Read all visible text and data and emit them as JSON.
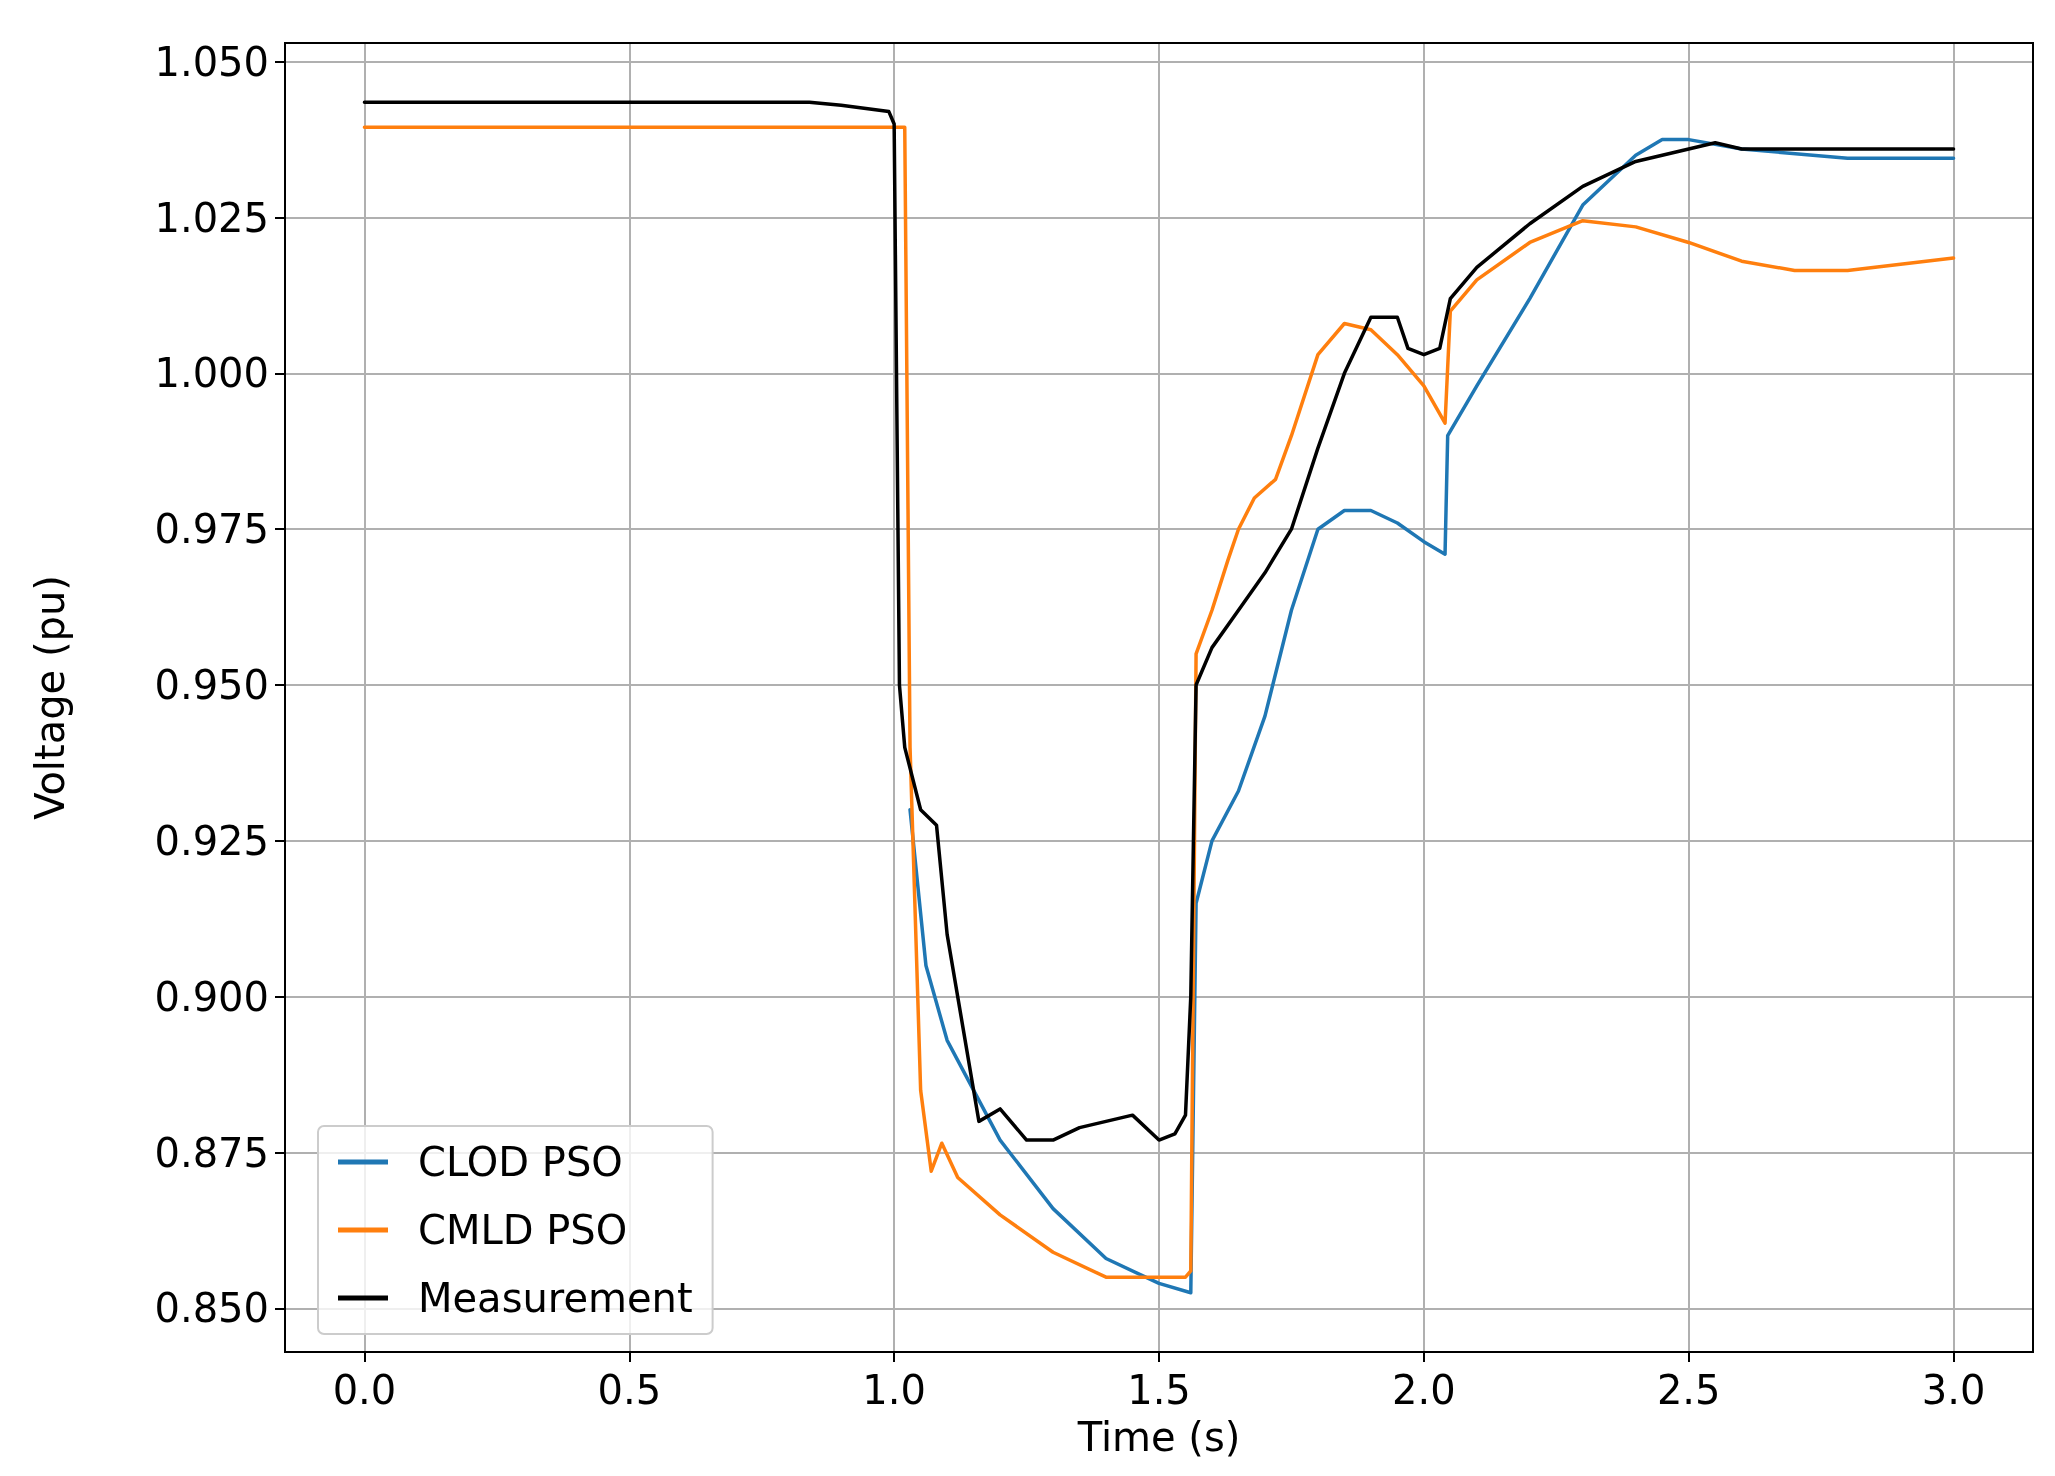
{
  "chart_data": {
    "type": "line",
    "xlabel": "Time (s)",
    "ylabel": "Voltage (pu)",
    "xlim": [
      -0.15,
      3.15
    ],
    "ylim": [
      0.843,
      1.053
    ],
    "xticks": [
      {
        "value": 0,
        "label": "0.0"
      },
      {
        "value": 0.5,
        "label": "0.5"
      },
      {
        "value": 1,
        "label": "1.0"
      },
      {
        "value": 1.5,
        "label": "1.5"
      },
      {
        "value": 2,
        "label": "2.0"
      },
      {
        "value": 2.5,
        "label": "2.5"
      },
      {
        "value": 3,
        "label": "3.0"
      }
    ],
    "yticks": [
      {
        "value": 0.85,
        "label": "0.850"
      },
      {
        "value": 0.875,
        "label": "0.875"
      },
      {
        "value": 0.9,
        "label": "0.900"
      },
      {
        "value": 0.925,
        "label": "0.925"
      },
      {
        "value": 0.95,
        "label": "0.950"
      },
      {
        "value": 0.975,
        "label": "0.975"
      },
      {
        "value": 1,
        "label": "1.000"
      },
      {
        "value": 1.025,
        "label": "1.025"
      },
      {
        "value": 1.05,
        "label": "1.050"
      }
    ],
    "grid": true,
    "legend": "bottom left",
    "marker": "none",
    "line_style": "solid",
    "series": [
      {
        "name": "CLOD PSO",
        "color": "#1f77b4",
        "x": [
          1.03,
          1.06,
          1.1,
          1.2,
          1.3,
          1.4,
          1.5,
          1.56,
          1.57,
          1.6,
          1.65,
          1.7,
          1.75,
          1.8,
          1.85,
          1.9,
          1.95,
          2.0,
          2.04,
          2.045,
          2.1,
          2.2,
          2.3,
          2.4,
          2.45,
          2.5,
          2.6,
          2.8,
          3.0
        ],
        "values": [
          0.93,
          0.905,
          0.893,
          0.877,
          0.866,
          0.858,
          0.854,
          0.8525,
          0.915,
          0.925,
          0.933,
          0.945,
          0.962,
          0.975,
          0.978,
          0.978,
          0.976,
          0.973,
          0.971,
          0.99,
          0.998,
          1.012,
          1.027,
          1.035,
          1.0375,
          1.0375,
          1.036,
          1.0345,
          1.0345
        ]
      },
      {
        "name": "CMLD PSO",
        "color": "#ff7f0e",
        "x": [
          0,
          1.0,
          1.02,
          1.03,
          1.05,
          1.07,
          1.09,
          1.12,
          1.2,
          1.3,
          1.4,
          1.55,
          1.56,
          1.57,
          1.6,
          1.63,
          1.65,
          1.68,
          1.72,
          1.75,
          1.8,
          1.85,
          1.9,
          1.95,
          2.0,
          2.04,
          2.05,
          2.1,
          2.2,
          2.3,
          2.4,
          2.5,
          2.6,
          2.7,
          2.8,
          2.9,
          3.0
        ],
        "values": [
          1.0395,
          1.0395,
          1.0395,
          0.94,
          0.885,
          0.872,
          0.8765,
          0.871,
          0.865,
          0.859,
          0.855,
          0.855,
          0.856,
          0.955,
          0.962,
          0.97,
          0.975,
          0.98,
          0.983,
          0.99,
          1.003,
          1.008,
          1.007,
          1.003,
          0.998,
          0.992,
          1.01,
          1.015,
          1.021,
          1.0245,
          1.0235,
          1.021,
          1.018,
          1.0165,
          1.0165,
          1.0175,
          1.0185
        ]
      },
      {
        "name": "Measurement",
        "color": "#000000",
        "x": [
          0,
          0.84,
          0.9,
          0.99,
          1.0,
          1.01,
          1.02,
          1.05,
          1.08,
          1.1,
          1.13,
          1.15,
          1.16,
          1.2,
          1.25,
          1.3,
          1.35,
          1.4,
          1.45,
          1.5,
          1.53,
          1.55,
          1.56,
          1.57,
          1.6,
          1.65,
          1.7,
          1.75,
          1.8,
          1.85,
          1.9,
          1.95,
          1.97,
          2.0,
          2.03,
          2.05,
          2.1,
          2.2,
          2.3,
          2.4,
          2.5,
          2.55,
          2.6,
          3.0
        ],
        "values": [
          1.0435,
          1.0435,
          1.043,
          1.042,
          1.04,
          0.95,
          0.94,
          0.93,
          0.9275,
          0.91,
          0.895,
          0.885,
          0.88,
          0.882,
          0.877,
          0.877,
          0.879,
          0.88,
          0.881,
          0.877,
          0.878,
          0.881,
          0.9,
          0.95,
          0.956,
          0.962,
          0.968,
          0.975,
          0.988,
          1.0,
          1.009,
          1.009,
          1.004,
          1.003,
          1.004,
          1.012,
          1.017,
          1.024,
          1.03,
          1.034,
          1.036,
          1.037,
          1.036,
          1.036
        ]
      }
    ]
  }
}
